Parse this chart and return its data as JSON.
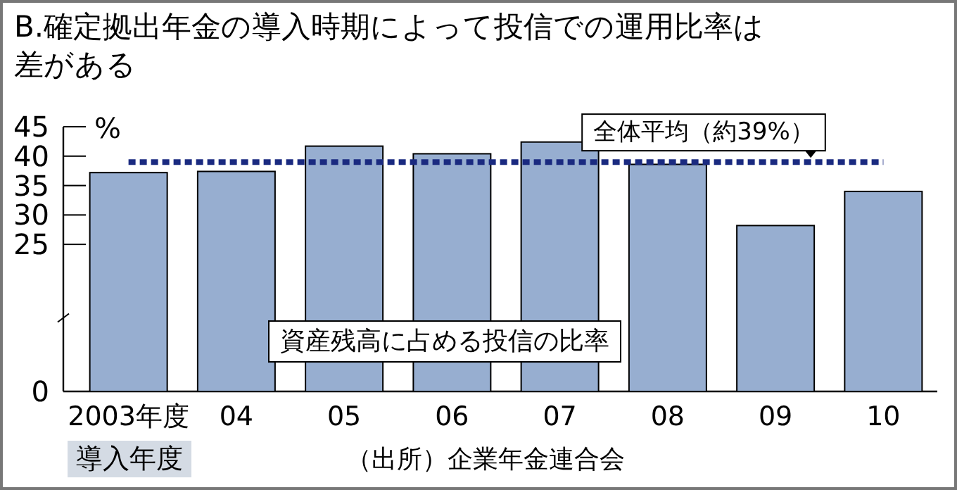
{
  "chart_data": {
    "type": "bar",
    "title": "B.確定拠出年金の導入時期によって投信での運用比率は差がある",
    "ylabel": "%",
    "xlabel": "導入年度",
    "categories": [
      "2003年度",
      "04",
      "05",
      "06",
      "07",
      "08",
      "09",
      "10"
    ],
    "series": [
      {
        "name": "資産残高に占める投信の比率",
        "color": "#97aed0",
        "values": [
          37.2,
          37.4,
          41.7,
          40.4,
          42.4,
          38.6,
          28.2,
          34.0
        ]
      }
    ],
    "ylim": [
      0,
      45
    ],
    "yticks": [
      0,
      25,
      30,
      35,
      40,
      45
    ],
    "ref_lines": [
      {
        "axis": "y",
        "value": 39,
        "label": "全体平均（約39%）",
        "color": "#1a2a80",
        "line_style": "dotted"
      }
    ],
    "annotations": [
      "（出所）企業年金連合会"
    ],
    "grid": false
  }
}
